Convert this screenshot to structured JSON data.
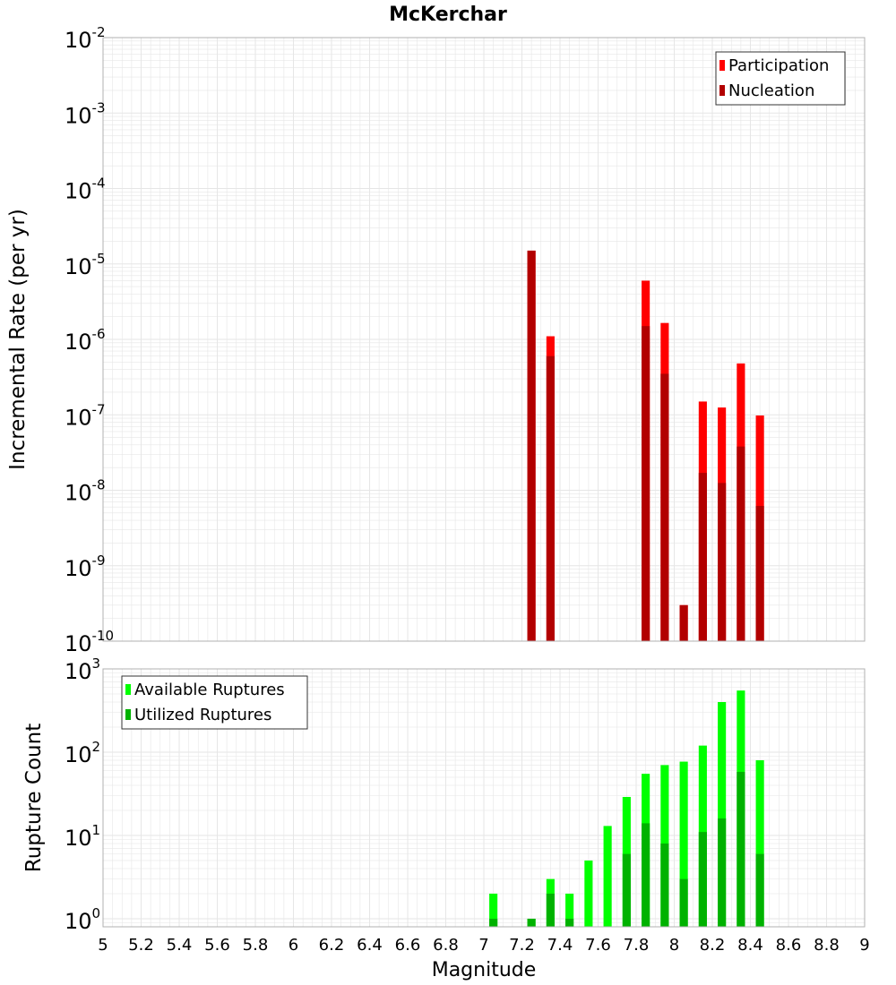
{
  "colors": {
    "participation": "#ff0000",
    "nucleation": "#b20000",
    "available": "#00ff00",
    "utilized": "#00b200",
    "grid": "#e6e6e6",
    "frame": "#b0b0b0"
  },
  "chart_data": [
    {
      "type": "bar",
      "title": "McKerchar",
      "xlabel": "",
      "ylabel": "Incremental Rate (per yr)",
      "yscale": "log",
      "xlim": [
        5,
        9
      ],
      "ylim": [
        1e-10,
        0.01
      ],
      "yticks": [
        {
          "base": "10",
          "exp": "-10",
          "value": 1e-10
        },
        {
          "base": "10",
          "exp": "-9",
          "value": 1e-09
        },
        {
          "base": "10",
          "exp": "-8",
          "value": 1e-08
        },
        {
          "base": "10",
          "exp": "-7",
          "value": 1e-07
        },
        {
          "base": "10",
          "exp": "-6",
          "value": 1e-06
        },
        {
          "base": "10",
          "exp": "-5",
          "value": 1e-05
        },
        {
          "base": "10",
          "exp": "-4",
          "value": 0.0001
        },
        {
          "base": "10",
          "exp": "-3",
          "value": 0.001
        },
        {
          "base": "10",
          "exp": "-2",
          "value": 0.01
        }
      ],
      "legend": {
        "position": "top-right",
        "entries": [
          "Participation",
          "Nucleation"
        ]
      },
      "x": [
        7.25,
        7.35,
        7.85,
        7.95,
        8.05,
        8.15,
        8.25,
        8.35,
        8.45
      ],
      "series": [
        {
          "name": "Participation",
          "values": [
            1.5e-05,
            1.1e-06,
            6e-06,
            1.65e-06,
            3e-10,
            1.5e-07,
            1.25e-07,
            4.8e-07,
            9.8e-08
          ]
        },
        {
          "name": "Nucleation",
          "values": [
            1.5e-05,
            6e-07,
            1.5e-06,
            3.5e-07,
            3e-10,
            1.7e-08,
            1.25e-08,
            3.8e-08,
            6.2e-09
          ]
        }
      ]
    },
    {
      "type": "bar",
      "title": "",
      "xlabel": "Magnitude",
      "ylabel": "Rupture Count",
      "yscale": "log",
      "xlim": [
        5,
        9
      ],
      "ylim": [
        0.8,
        1000
      ],
      "yticks": [
        {
          "base": "10",
          "exp": "0",
          "value": 1
        },
        {
          "base": "10",
          "exp": "1",
          "value": 10
        },
        {
          "base": "10",
          "exp": "2",
          "value": 100
        },
        {
          "base": "10",
          "exp": "3",
          "value": 1000
        }
      ],
      "xticks": [
        "5",
        "5.2",
        "5.4",
        "5.6",
        "5.8",
        "6",
        "6.2",
        "6.4",
        "6.6",
        "6.8",
        "7",
        "7.2",
        "7.4",
        "7.6",
        "7.8",
        "8",
        "8.2",
        "8.4",
        "8.6",
        "8.8",
        "9"
      ],
      "legend": {
        "position": "top-left",
        "entries": [
          "Available Ruptures",
          "Utilized Ruptures"
        ]
      },
      "x": [
        7.05,
        7.25,
        7.35,
        7.45,
        7.55,
        7.65,
        7.75,
        7.85,
        7.95,
        8.05,
        8.15,
        8.25,
        8.35,
        8.45
      ],
      "series": [
        {
          "name": "Available Ruptures",
          "values": [
            2,
            1,
            3,
            2,
            5,
            13,
            29,
            55,
            70,
            77,
            120,
            400,
            550,
            80
          ]
        },
        {
          "name": "Utilized Ruptures",
          "values": [
            1,
            1,
            2,
            1,
            0,
            0,
            6,
            14,
            8,
            3,
            11,
            16,
            58,
            6
          ]
        }
      ]
    }
  ]
}
